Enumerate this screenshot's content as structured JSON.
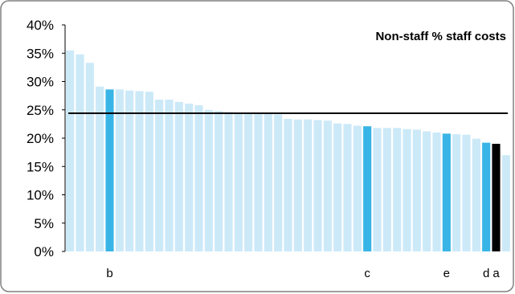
{
  "chart_data": {
    "type": "bar",
    "title": "Non-staff % staff costs",
    "xlabel": "",
    "ylabel": "",
    "ylim": [
      0,
      40
    ],
    "y_ticks": [
      "0%",
      "5%",
      "10%",
      "15%",
      "20%",
      "25%",
      "30%",
      "35%",
      "40%"
    ],
    "y_tick_values": [
      0,
      5,
      10,
      15,
      20,
      25,
      30,
      35,
      40
    ],
    "y_unit": "%",
    "grid": false,
    "legend": "none",
    "reference_line": 24.4,
    "values": [
      35.5,
      34.8,
      33.3,
      29.1,
      28.6,
      28.6,
      28.4,
      28.3,
      28.2,
      26.8,
      26.8,
      26.4,
      26.1,
      25.8,
      25.0,
      24.8,
      24.6,
      24.5,
      24.4,
      24.4,
      24.3,
      24.2,
      23.4,
      23.3,
      23.3,
      23.2,
      23.1,
      22.6,
      22.5,
      22.2,
      22.1,
      21.8,
      21.8,
      21.8,
      21.6,
      21.5,
      21.2,
      21.0,
      20.8,
      20.7,
      20.6,
      19.9,
      19.2,
      19.0,
      17.0
    ],
    "bar_kinds": [
      "normal",
      "normal",
      "normal",
      "normal",
      "highlight",
      "normal",
      "normal",
      "normal",
      "normal",
      "normal",
      "normal",
      "normal",
      "normal",
      "normal",
      "normal",
      "normal",
      "normal",
      "normal",
      "normal",
      "normal",
      "normal",
      "normal",
      "normal",
      "normal",
      "normal",
      "normal",
      "normal",
      "normal",
      "normal",
      "normal",
      "highlight",
      "normal",
      "normal",
      "normal",
      "normal",
      "normal",
      "normal",
      "normal",
      "highlight",
      "normal",
      "normal",
      "normal",
      "highlight",
      "target",
      "normal"
    ],
    "category_labels": [
      {
        "index": 4,
        "label": "b"
      },
      {
        "index": 30,
        "label": "c"
      },
      {
        "index": 38,
        "label": "e"
      },
      {
        "index": 42,
        "label": "d"
      },
      {
        "index": 43,
        "label": "a"
      }
    ],
    "colors": {
      "normal": "#cce9f8",
      "highlight": "#38b5e6",
      "target": "#000000",
      "reference_line": "#000000",
      "frame": "#808080"
    }
  }
}
